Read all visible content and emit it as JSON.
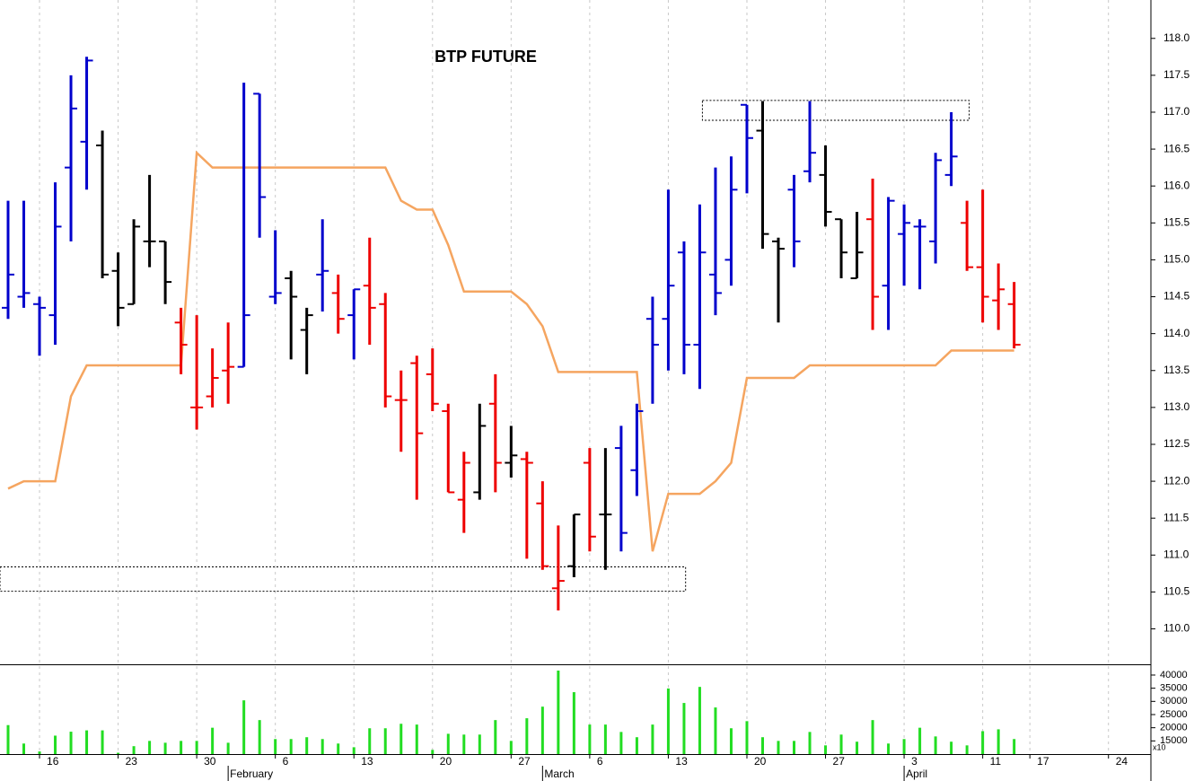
{
  "chart_data": [
    {
      "type": "ohlc",
      "title": "BTP FUTURE",
      "xlim": [
        -0.514,
        72.7
      ],
      "ylim": [
        109.52,
        118.52
      ],
      "yticks": [
        {
          "value": 110,
          "label": "110.0"
        },
        110.5,
        {
          "value": 111,
          "label": "111.0"
        },
        111.5,
        {
          "value": 112,
          "label": "112.0"
        },
        112.5,
        {
          "value": 113,
          "label": "113.0"
        },
        113.5,
        {
          "value": 114,
          "label": "114.0"
        },
        114.5,
        {
          "value": 115,
          "label": "115.0"
        },
        115.5,
        {
          "value": 116,
          "label": "116.0"
        },
        116.5,
        {
          "value": 117,
          "label": "117.0"
        },
        117.5,
        {
          "value": 118,
          "label": "118.0"
        }
      ],
      "open": [
        114.35,
        114.5,
        114.4,
        114.25,
        116.25,
        116.6,
        116.55,
        114.85,
        114.4,
        115.25,
        115.25,
        114.15,
        113.0,
        113.15,
        113.5,
        113.55,
        117.25,
        114.5,
        114.75,
        114.05,
        114.8,
        114.55,
        114.25,
        114.65,
        114.4,
        113.1,
        113.6,
        113.45,
        112.95,
        111.75,
        111.85,
        113.05,
        112.25,
        112.3,
        111.7,
        110.55,
        110.85,
        112.25,
        111.55,
        112.45,
        112.15,
        114.2,
        114.2,
        115.1,
        113.85,
        114.8,
        115.0,
        117.1,
        116.75,
        115.25,
        115.95,
        116.2,
        116.15,
        115.55,
        114.75,
        115.55,
        114.65,
        115.35,
        115.45,
        115.25,
        116.15,
        115.5,
        114.9,
        114.45,
        114.4
      ],
      "high": [
        115.8,
        115.8,
        114.5,
        116.05,
        117.5,
        117.75,
        116.75,
        115.1,
        115.55,
        116.15,
        115.25,
        114.35,
        114.25,
        113.8,
        114.15,
        117.4,
        117.25,
        115.4,
        114.85,
        114.35,
        115.55,
        114.8,
        114.6,
        115.3,
        114.55,
        113.5,
        113.7,
        113.8,
        113.05,
        112.4,
        113.05,
        113.45,
        112.75,
        112.4,
        112.0,
        111.4,
        111.55,
        112.45,
        112.45,
        112.75,
        113.05,
        114.5,
        115.95,
        115.25,
        115.75,
        116.25,
        116.4,
        117.1,
        117.15,
        115.3,
        116.15,
        117.15,
        116.55,
        115.55,
        115.65,
        116.1,
        115.85,
        115.75,
        115.55,
        116.45,
        117.0,
        115.8,
        115.95,
        114.95,
        114.7
      ],
      "low": [
        114.2,
        114.35,
        113.7,
        113.85,
        115.25,
        115.95,
        114.75,
        114.1,
        114.4,
        114.9,
        114.4,
        113.45,
        112.7,
        113.0,
        113.05,
        113.55,
        115.3,
        114.4,
        113.65,
        113.45,
        114.3,
        114.0,
        113.65,
        113.85,
        113.0,
        112.4,
        111.75,
        112.95,
        111.85,
        111.3,
        111.75,
        111.85,
        112.05,
        110.95,
        110.8,
        110.25,
        110.7,
        111.05,
        110.8,
        111.05,
        111.8,
        113.05,
        113.5,
        113.45,
        113.25,
        114.25,
        114.65,
        115.9,
        115.15,
        114.15,
        114.9,
        116.05,
        115.45,
        114.75,
        114.75,
        114.05,
        114.05,
        114.65,
        114.6,
        114.95,
        116.0,
        114.85,
        114.15,
        114.05,
        113.8
      ],
      "close": [
        114.8,
        114.55,
        114.35,
        115.45,
        117.05,
        117.7,
        114.8,
        114.35,
        115.45,
        115.25,
        114.7,
        113.85,
        113.0,
        113.4,
        113.55,
        114.25,
        115.85,
        114.55,
        114.5,
        114.25,
        114.85,
        114.2,
        114.6,
        114.35,
        113.15,
        113.1,
        112.65,
        113.05,
        111.85,
        112.25,
        112.75,
        112.25,
        112.35,
        112.25,
        110.85,
        110.65,
        111.55,
        111.25,
        111.55,
        111.3,
        112.95,
        113.85,
        114.65,
        113.85,
        115.1,
        114.55,
        115.95,
        116.65,
        115.35,
        115.15,
        115.25,
        116.45,
        115.65,
        115.1,
        115.1,
        114.5,
        115.8,
        115.5,
        115.45,
        116.35,
        116.4,
        114.9,
        114.5,
        114.6,
        113.85
      ],
      "colors": [
        "#0000cc",
        "#0000cc",
        "#0000cc",
        "#0000cc",
        "#0000cc",
        "#0000cc",
        "#000000",
        "#000000",
        "#000000",
        "#000000",
        "#000000",
        "#ee0000",
        "#ee0000",
        "#ee0000",
        "#ee0000",
        "#0000cc",
        "#0000cc",
        "#0000cc",
        "#000000",
        "#000000",
        "#0000cc",
        "#ee0000",
        "#0000cc",
        "#ee0000",
        "#ee0000",
        "#ee0000",
        "#ee0000",
        "#ee0000",
        "#ee0000",
        "#ee0000",
        "#000000",
        "#ee0000",
        "#000000",
        "#ee0000",
        "#ee0000",
        "#ee0000",
        "#000000",
        "#ee0000",
        "#000000",
        "#0000cc",
        "#0000cc",
        "#0000cc",
        "#0000cc",
        "#0000cc",
        "#0000cc",
        "#0000cc",
        "#0000cc",
        "#0000cc",
        "#000000",
        "#000000",
        "#0000cc",
        "#0000cc",
        "#000000",
        "#000000",
        "#000000",
        "#ee0000",
        "#0000cc",
        "#0000cc",
        "#0000cc",
        "#0000cc",
        "#0000cc",
        "#ee0000",
        "#ee0000",
        "#ee0000",
        "#ee0000"
      ],
      "line": {
        "color": "#f5a560",
        "values": [
          111.9,
          112.0,
          112.0,
          112.0,
          113.15,
          113.57,
          113.57,
          113.57,
          113.57,
          113.57,
          113.57,
          113.57,
          116.45,
          116.25,
          116.25,
          116.25,
          116.25,
          116.25,
          116.25,
          116.25,
          116.25,
          116.25,
          116.25,
          116.25,
          116.25,
          115.8,
          115.68,
          115.68,
          115.2,
          114.57,
          114.57,
          114.57,
          114.57,
          114.4,
          114.1,
          113.48,
          113.48,
          113.48,
          113.48,
          113.48,
          113.48,
          111.05,
          111.83,
          111.83,
          111.83,
          112.0,
          112.25,
          113.4,
          113.4,
          113.4,
          113.4,
          113.57,
          113.57,
          113.57,
          113.57,
          113.57,
          113.57,
          113.57,
          113.57,
          113.57,
          113.77,
          113.77,
          113.77,
          113.77,
          113.77
        ]
      },
      "zones": [
        {
          "xlim": [
            44.17,
            61.14
          ],
          "ylim": [
            116.89,
            117.16
          ]
        },
        {
          "xlim": [
            -0.514,
            43.1
          ],
          "ylim": [
            110.51,
            110.84
          ]
        }
      ]
    },
    {
      "type": "bar",
      "color": "#22dd22",
      "unit_label": "x10",
      "xlim": [
        -0.514,
        72.7
      ],
      "ylim": [
        10000,
        43400
      ],
      "yticks": [
        15000,
        20000,
        25000,
        30000,
        35000,
        40000
      ],
      "values": [
        21000,
        14000,
        11000,
        17000,
        18500,
        19000,
        19000,
        10500,
        13000,
        15000,
        14300,
        15000,
        15000,
        20000,
        14300,
        30400,
        22900,
        15700,
        15700,
        16400,
        15700,
        14000,
        12600,
        19800,
        19800,
        21500,
        21200,
        11600,
        17700,
        17400,
        17400,
        22900,
        15000,
        23600,
        28000,
        41700,
        33500,
        21200,
        21200,
        18400,
        16400,
        21200,
        34900,
        29400,
        35500,
        27700,
        19800,
        22500,
        16400,
        15000,
        15000,
        18400,
        13300,
        17400,
        14700,
        22900,
        14000,
        15700,
        20000,
        16700,
        14700,
        13300,
        18700,
        19400,
        15700
      ],
      "xticks": [
        {
          "value": 2,
          "label": "16"
        },
        {
          "value": 7,
          "label": "23"
        },
        {
          "value": 12,
          "label": "30"
        },
        {
          "value": 17,
          "label": "6"
        },
        {
          "value": 22,
          "label": "13"
        },
        {
          "value": 27,
          "label": "20"
        },
        {
          "value": 32,
          "label": "27"
        },
        {
          "value": 37,
          "label": "6"
        },
        {
          "value": 42,
          "label": "13"
        },
        {
          "value": 47,
          "label": "20"
        },
        {
          "value": 52,
          "label": "27"
        },
        {
          "value": 57,
          "label": "3"
        },
        {
          "value": 62,
          "label": "11"
        },
        {
          "value": 65,
          "label": "17"
        },
        {
          "value": 70,
          "label": "24"
        }
      ],
      "month_ticks": [
        {
          "value": 14,
          "label": "February"
        },
        {
          "value": 34,
          "label": "March"
        },
        {
          "value": 57,
          "label": "April"
        }
      ]
    }
  ]
}
